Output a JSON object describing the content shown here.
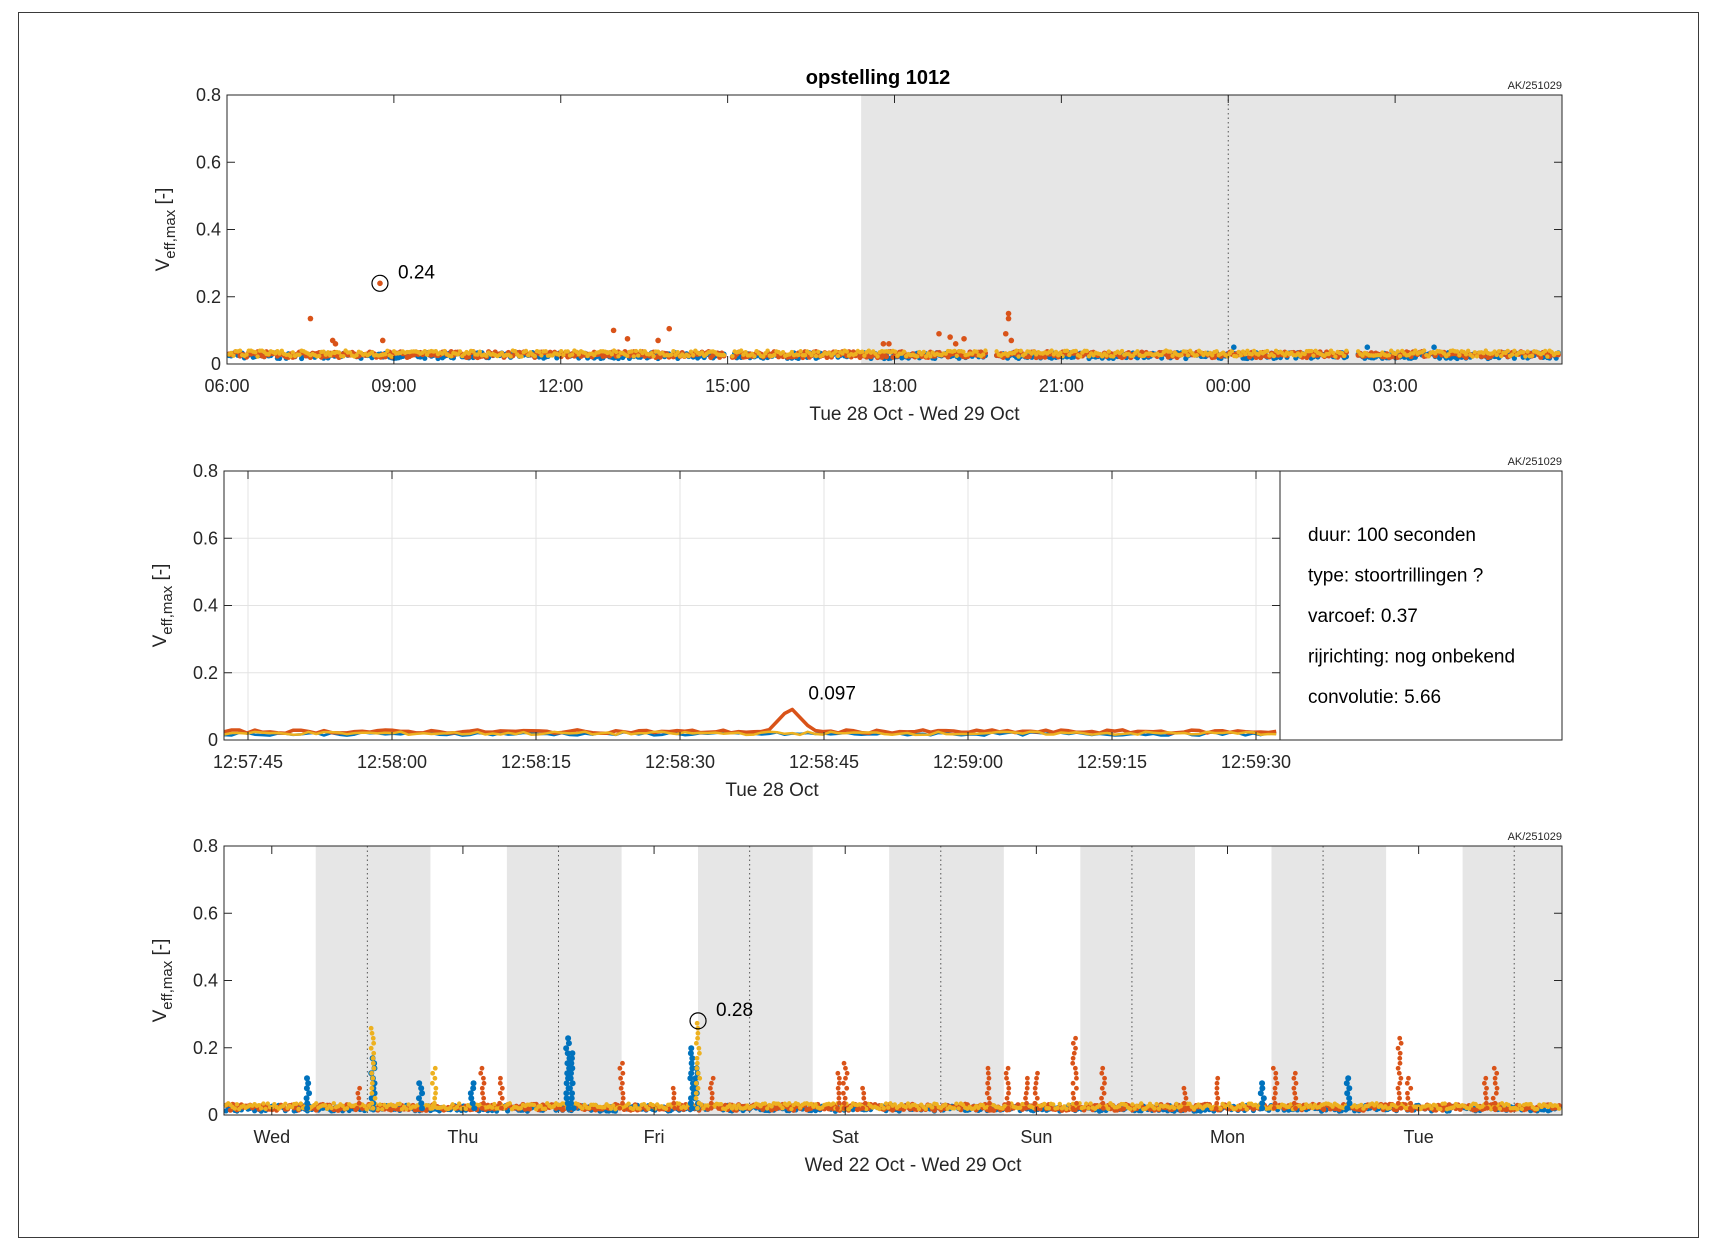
{
  "title": "opstelling 1012",
  "colors": {
    "series1": "#0072BD",
    "series2": "#D95319",
    "series3": "#EDB120",
    "night": "#E6E6E6",
    "grid": "#E3E3E3"
  },
  "chart_data": [
    {
      "type": "scatter",
      "title": "opstelling 1012",
      "stamp": "AK/251029",
      "xlabel": "Tue 28 Oct   -   Wed 29 Oct",
      "ylabel": "V",
      "ylabel_sub": "eff,max",
      "ylabel_unit": " [-]",
      "x_unit": "hours since Tue 28 Oct 00:00",
      "xlim": [
        6,
        30
      ],
      "ylim": [
        0,
        0.8
      ],
      "yticks": [
        0,
        0.2,
        0.4,
        0.6,
        0.8
      ],
      "ytick_labels": [
        "0",
        "0.2",
        "0.4",
        "0.6",
        "0.8"
      ],
      "xticks": [
        6,
        9,
        12,
        15,
        18,
        21,
        24,
        27
      ],
      "xtick_labels": [
        "06:00",
        "09:00",
        "12:00",
        "15:00",
        "18:00",
        "21:00",
        "00:00",
        "03:00"
      ],
      "night_shading": [
        [
          17.4,
          30
        ]
      ],
      "midnight_lines": [
        24
      ],
      "baseline": [
        {
          "x0": 6,
          "x1": 15,
          "y": 0.025
        },
        {
          "x0": 15.05,
          "x1": 19.7,
          "y": 0.025
        },
        {
          "x0": 19.8,
          "x1": 26.2,
          "y": 0.025
        },
        {
          "x0": 26.3,
          "x1": 30,
          "y": 0.025
        }
      ],
      "points": [
        {
          "x": 7.5,
          "y": 0.135,
          "s": 1
        },
        {
          "x": 7.9,
          "y": 0.07,
          "s": 1
        },
        {
          "x": 7.95,
          "y": 0.06,
          "s": 1
        },
        {
          "x": 8.8,
          "y": 0.07,
          "s": 1
        },
        {
          "x": 8.75,
          "y": 0.24,
          "s": 1
        },
        {
          "x": 12.95,
          "y": 0.1,
          "s": 1
        },
        {
          "x": 13.2,
          "y": 0.075,
          "s": 1
        },
        {
          "x": 13.75,
          "y": 0.07,
          "s": 1
        },
        {
          "x": 13.95,
          "y": 0.105,
          "s": 1
        },
        {
          "x": 17.8,
          "y": 0.06,
          "s": 1
        },
        {
          "x": 17.9,
          "y": 0.06,
          "s": 1
        },
        {
          "x": 18.8,
          "y": 0.09,
          "s": 1
        },
        {
          "x": 19.0,
          "y": 0.08,
          "s": 1
        },
        {
          "x": 19.1,
          "y": 0.06,
          "s": 1
        },
        {
          "x": 19.25,
          "y": 0.075,
          "s": 1
        },
        {
          "x": 20.05,
          "y": 0.15,
          "s": 1
        },
        {
          "x": 20.05,
          "y": 0.135,
          "s": 1
        },
        {
          "x": 20.0,
          "y": 0.09,
          "s": 1
        },
        {
          "x": 20.1,
          "y": 0.07,
          "s": 1
        },
        {
          "x": 24.1,
          "y": 0.05,
          "s": 0
        },
        {
          "x": 27.7,
          "y": 0.05,
          "s": 0
        },
        {
          "x": 26.5,
          "y": 0.05,
          "s": 0
        }
      ],
      "annotation": {
        "x": 8.75,
        "y": 0.24,
        "text": "0.24"
      }
    },
    {
      "type": "line",
      "stamp": "AK/251029",
      "xlabel": "Tue 28 Oct",
      "ylabel": "V",
      "ylabel_sub": "eff,max",
      "ylabel_unit": " [-]",
      "x_unit": "seconds since 12:57:45",
      "xlim": [
        -2.5,
        107.5
      ],
      "ylim": [
        0,
        0.8
      ],
      "yticks": [
        0,
        0.2,
        0.4,
        0.6,
        0.8
      ],
      "ytick_labels": [
        "0",
        "0.2",
        "0.4",
        "0.6",
        "0.8"
      ],
      "xticks": [
        0,
        15,
        30,
        45,
        60,
        75,
        90,
        105
      ],
      "xtick_labels": [
        "12:57:45",
        "12:58:00",
        "12:58:15",
        "12:58:30",
        "12:58:45",
        "12:59:00",
        "12:59:15",
        "12:59:30"
      ],
      "grid": true,
      "series_levels": [
        0.018,
        0.025,
        0.02
      ],
      "peak": {
        "x": 56.5,
        "y": 0.097
      },
      "annotation": {
        "x": 56.5,
        "y": 0.097,
        "text": "0.097"
      },
      "info": [
        "duur: 100 seconden",
        "type: stoortrillingen ?",
        "varcoef: 0.37",
        "rijrichting: nog onbekend",
        "convolutie: 5.66"
      ]
    },
    {
      "type": "scatter",
      "stamp": "AK/251029",
      "xlabel": "Wed 22 Oct   -   Wed 29 Oct",
      "ylabel": "V",
      "ylabel_sub": "eff,max",
      "ylabel_unit": " [-]",
      "x_unit": "days since Wed 22 Oct 00:00",
      "xlim": [
        0.0,
        7.0
      ],
      "ylim": [
        0,
        0.8
      ],
      "yticks": [
        0,
        0.2,
        0.4,
        0.6,
        0.8
      ],
      "ytick_labels": [
        "0",
        "0.2",
        "0.4",
        "0.6",
        "0.8"
      ],
      "xticks": [
        0.25,
        1.25,
        2.25,
        3.25,
        4.25,
        5.25,
        6.25
      ],
      "xtick_labels": [
        "Wed",
        "Thu",
        "Fri",
        "Sat",
        "Sun",
        "Mon",
        "Tue"
      ],
      "night_shading": [
        [
          0.48,
          1.08
        ],
        [
          1.48,
          2.08
        ],
        [
          2.48,
          3.08
        ],
        [
          3.48,
          4.08
        ],
        [
          4.48,
          5.08
        ],
        [
          5.48,
          6.08
        ],
        [
          6.48,
          7.0
        ]
      ],
      "midnight_lines": [
        0.75,
        1.75,
        2.75,
        3.75,
        4.75,
        5.75,
        6.75
      ],
      "baseline": [
        {
          "x0": 0,
          "x1": 7.0,
          "y": 0.02
        }
      ],
      "spikes": [
        {
          "x": 0.44,
          "y": 0.12,
          "s": 0
        },
        {
          "x": 0.78,
          "y": 0.17,
          "s": 0
        },
        {
          "x": 0.78,
          "y": 0.26,
          "s": 2
        },
        {
          "x": 1.03,
          "y": 0.1,
          "s": 0
        },
        {
          "x": 1.1,
          "y": 0.14,
          "s": 2
        },
        {
          "x": 1.3,
          "y": 0.1,
          "s": 0
        },
        {
          "x": 1.35,
          "y": 0.15,
          "s": 1
        },
        {
          "x": 1.45,
          "y": 0.12,
          "s": 1
        },
        {
          "x": 1.8,
          "y": 0.23,
          "s": 0
        },
        {
          "x": 1.82,
          "y": 0.19,
          "s": 0
        },
        {
          "x": 2.45,
          "y": 0.21,
          "s": 0
        },
        {
          "x": 2.47,
          "y": 0.15,
          "s": 0
        },
        {
          "x": 2.48,
          "y": 0.28,
          "s": 2
        },
        {
          "x": 2.08,
          "y": 0.16,
          "s": 1
        },
        {
          "x": 2.55,
          "y": 0.12,
          "s": 1
        },
        {
          "x": 2.35,
          "y": 0.09,
          "s": 1
        },
        {
          "x": 3.25,
          "y": 0.16,
          "s": 1
        },
        {
          "x": 3.22,
          "y": 0.13,
          "s": 1
        },
        {
          "x": 4.0,
          "y": 0.15,
          "s": 1
        },
        {
          "x": 4.1,
          "y": 0.14,
          "s": 1
        },
        {
          "x": 4.25,
          "y": 0.13,
          "s": 1
        },
        {
          "x": 4.45,
          "y": 0.24,
          "s": 1
        },
        {
          "x": 4.6,
          "y": 0.14,
          "s": 1
        },
        {
          "x": 4.2,
          "y": 0.11,
          "s": 1
        },
        {
          "x": 5.2,
          "y": 0.12,
          "s": 1
        },
        {
          "x": 5.5,
          "y": 0.14,
          "s": 1
        },
        {
          "x": 5.6,
          "y": 0.13,
          "s": 1
        },
        {
          "x": 5.43,
          "y": 0.1,
          "s": 0
        },
        {
          "x": 5.88,
          "y": 0.12,
          "s": 0
        },
        {
          "x": 6.15,
          "y": 0.24,
          "s": 1
        },
        {
          "x": 6.2,
          "y": 0.12,
          "s": 1
        },
        {
          "x": 6.65,
          "y": 0.15,
          "s": 1
        },
        {
          "x": 6.6,
          "y": 0.12,
          "s": 1
        },
        {
          "x": 5.03,
          "y": 0.09,
          "s": 1
        },
        {
          "x": 3.35,
          "y": 0.09,
          "s": 1
        },
        {
          "x": 0.7,
          "y": 0.08,
          "s": 1
        }
      ],
      "annotation": {
        "x": 2.48,
        "y": 0.28,
        "text": "0.28"
      }
    }
  ]
}
